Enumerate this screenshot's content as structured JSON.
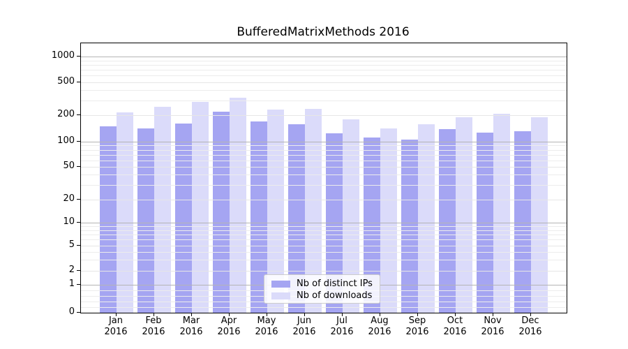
{
  "chart_data": {
    "type": "bar",
    "title": "BufferedMatrixMethods 2016",
    "categories": [
      "Jan",
      "Feb",
      "Mar",
      "Apr",
      "May",
      "Jun",
      "Jul",
      "Aug",
      "Sep",
      "Oct",
      "Nov",
      "Dec"
    ],
    "x_year": "2016",
    "series": [
      {
        "name": "Nb of distinct IPs",
        "color": "#a5a5f2",
        "values": [
          149,
          142,
          161,
          219,
          169,
          157,
          124,
          112,
          105,
          138,
          126,
          132
        ]
      },
      {
        "name": "Nb of downloads",
        "color": "#dbdbfa",
        "values": [
          217,
          255,
          290,
          323,
          234,
          237,
          180,
          141,
          159,
          191,
          210,
          189
        ]
      }
    ],
    "xlabel": "",
    "ylabel": "",
    "y_axis": {
      "scale": "log-like with zero baseline",
      "tick_values": [
        0,
        1,
        2,
        5,
        10,
        20,
        50,
        100,
        200,
        500,
        1000
      ],
      "minor_grid_values": [
        0.2,
        0.4,
        0.6,
        0.8,
        3,
        4,
        6,
        7,
        8,
        9,
        30,
        40,
        60,
        70,
        80,
        90,
        300,
        400,
        600,
        700,
        800,
        900
      ],
      "ylim_top": 1400
    },
    "grid": "horizontal major and minor gridlines",
    "legend_position": "inside bottom-center"
  },
  "legend": {
    "items": [
      {
        "label": "Nb of distinct IPs"
      },
      {
        "label": "Nb of downloads"
      }
    ]
  }
}
